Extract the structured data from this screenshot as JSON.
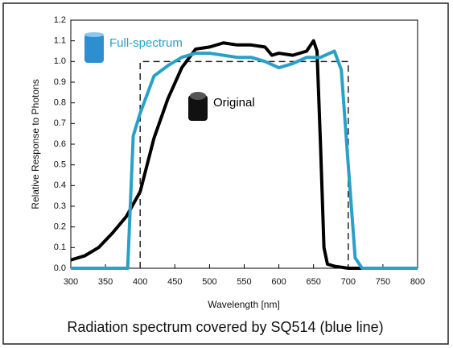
{
  "chart_data": {
    "type": "line",
    "x_label": "Wavelength [nm]",
    "y_label": "Relative Response to Photons",
    "caption": "Radiation spectrum covered by SQ514 (blue line)",
    "xlim": [
      300,
      800
    ],
    "xticks": [
      300,
      350,
      400,
      450,
      500,
      550,
      600,
      650,
      700,
      750,
      800
    ],
    "ylim": [
      0,
      1.2
    ],
    "yticks": [
      {
        "value": 0,
        "label": "0.0"
      },
      0.1,
      0.2,
      0.3,
      0.4,
      0.5,
      0.6,
      0.7,
      0.8,
      0.9,
      {
        "value": 1,
        "label": "1.0"
      },
      1.1,
      1.2
    ],
    "series": [
      {
        "color": "#222222",
        "style": "dashed",
        "x": [
          400,
          400,
          700,
          700
        ],
        "values": [
          0,
          1.0,
          1.0,
          0
        ]
      },
      {
        "name": "Original",
        "color": "#000000",
        "x": [
          300,
          320,
          340,
          360,
          380,
          400,
          410,
          420,
          440,
          460,
          480,
          500,
          520,
          540,
          560,
          580,
          590,
          600,
          620,
          640,
          650,
          655,
          660,
          665,
          670,
          680,
          700,
          800
        ],
        "values": [
          0.04,
          0.06,
          0.1,
          0.17,
          0.25,
          0.37,
          0.5,
          0.63,
          0.82,
          0.97,
          1.06,
          1.07,
          1.09,
          1.08,
          1.08,
          1.07,
          1.03,
          1.04,
          1.03,
          1.05,
          1.1,
          1.05,
          0.6,
          0.1,
          0.02,
          0.01,
          0,
          0
        ]
      },
      {
        "name": "Full-spectrum",
        "color": "#2aa0c8",
        "x": [
          300,
          382,
          390,
          400,
          420,
          440,
          460,
          480,
          500,
          520,
          540,
          560,
          580,
          600,
          620,
          640,
          660,
          680,
          690,
          700,
          710,
          720,
          800
        ],
        "values": [
          0,
          0,
          0.64,
          0.75,
          0.93,
          0.98,
          1.02,
          1.04,
          1.04,
          1.03,
          1.02,
          1.02,
          1.0,
          0.97,
          0.99,
          1.02,
          1.02,
          1.05,
          0.96,
          0.5,
          0.05,
          0,
          0
        ]
      }
    ]
  }
}
